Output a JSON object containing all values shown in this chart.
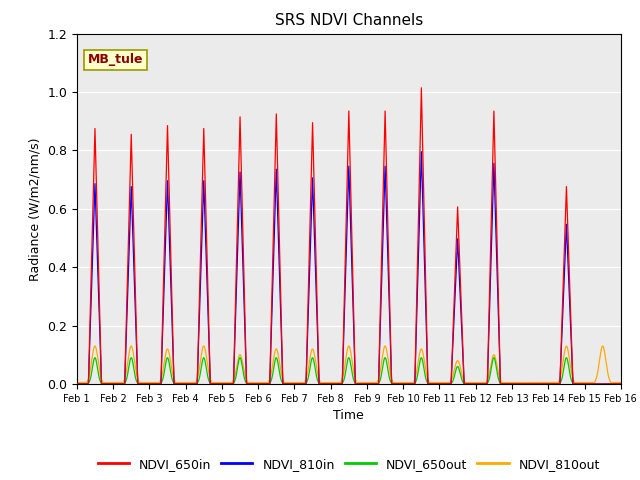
{
  "title": "SRS NDVI Channels",
  "xlabel": "Time",
  "ylabel": "Radiance (W/m2/nm/s)",
  "annotation": "MB_tule",
  "ylim": [
    0.0,
    1.2
  ],
  "xlim": [
    0,
    15
  ],
  "xtick_labels": [
    "Feb 1",
    "Feb 2",
    "Feb 3",
    "Feb 4",
    "Feb 5",
    "Feb 6",
    "Feb 7",
    "Feb 8",
    "Feb 9",
    "Feb 10",
    "Feb 11",
    "Feb 12",
    "Feb 13",
    "Feb 14",
    "Feb 15",
    "Feb 16"
  ],
  "legend_labels": [
    "NDVI_650in",
    "NDVI_810in",
    "NDVI_650out",
    "NDVI_810out"
  ],
  "legend_colors": [
    "#ff0000",
    "#0000ff",
    "#00cc00",
    "#ffaa00"
  ],
  "background_color": "#ebebeb",
  "peak_650in": [
    0.88,
    0.86,
    0.89,
    0.88,
    0.92,
    0.93,
    0.9,
    0.94,
    0.94,
    1.02,
    0.61,
    0.94,
    0.0,
    0.68,
    0.0
  ],
  "peak_810in": [
    0.69,
    0.68,
    0.7,
    0.7,
    0.73,
    0.74,
    0.71,
    0.75,
    0.75,
    0.8,
    0.5,
    0.76,
    0.0,
    0.55,
    0.0
  ],
  "peak_650out": [
    0.09,
    0.09,
    0.09,
    0.09,
    0.09,
    0.09,
    0.09,
    0.09,
    0.09,
    0.09,
    0.06,
    0.09,
    0.0,
    0.09,
    0.0
  ],
  "peak_810out": [
    0.13,
    0.13,
    0.12,
    0.13,
    0.1,
    0.12,
    0.12,
    0.13,
    0.13,
    0.12,
    0.08,
    0.1,
    0.0,
    0.13,
    0.13
  ],
  "baseline_810out": 0.005
}
